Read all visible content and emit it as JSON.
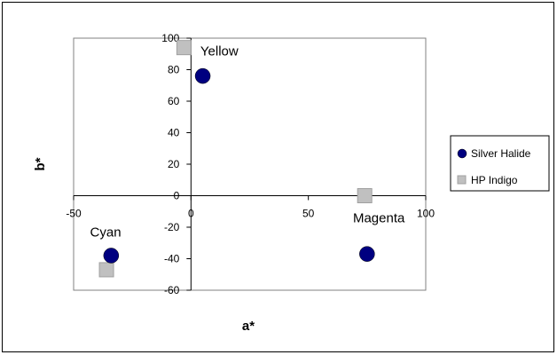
{
  "chart_data": {
    "type": "scatter",
    "title": "",
    "xlabel": "a*",
    "ylabel": "b*",
    "xlim": [
      -50,
      100
    ],
    "ylim": [
      -60,
      100
    ],
    "x_ticks": [
      -50,
      0,
      50,
      100
    ],
    "x_tick_labels": [
      "-50",
      "0",
      "50",
      "100"
    ],
    "y_ticks": [
      -60,
      -40,
      -20,
      0,
      20,
      40,
      60,
      80,
      100
    ],
    "y_tick_labels": [
      "-60",
      "-40",
      "-20",
      "0",
      "20",
      "40",
      "60",
      "80",
      "100"
    ],
    "grid": false,
    "legend_position": "right",
    "series": [
      {
        "name": "Silver Halide",
        "marker": "circle",
        "color": "#000080",
        "points": [
          {
            "x": 5,
            "y": 76
          },
          {
            "x": 75,
            "y": -37
          },
          {
            "x": -34,
            "y": -38
          }
        ]
      },
      {
        "name": "HP Indigo",
        "marker": "square",
        "color": "#c0c0c0",
        "points": [
          {
            "x": -3,
            "y": 94
          },
          {
            "x": 74,
            "y": 0
          },
          {
            "x": -36,
            "y": -47
          }
        ]
      }
    ],
    "annotations": [
      {
        "text": "Yellow",
        "x": 4,
        "y": 89
      },
      {
        "text": "Magenta",
        "x": 69,
        "y": -17
      },
      {
        "text": "Cyan",
        "x": -43,
        "y": -26
      }
    ]
  }
}
